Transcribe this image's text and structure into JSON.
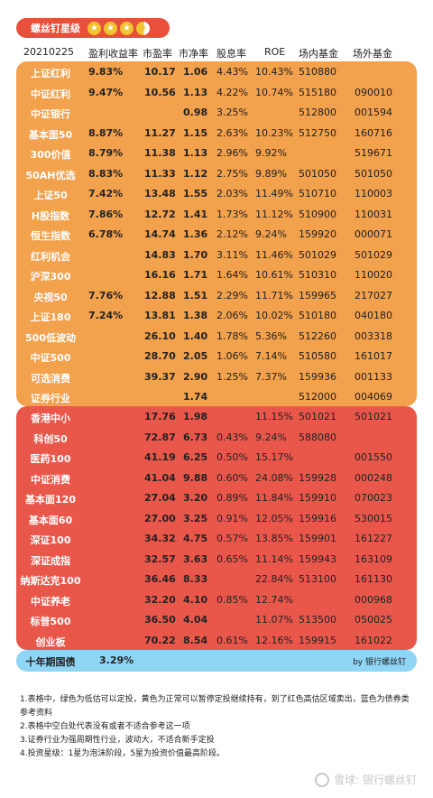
{
  "badge": {
    "label": "螺丝钉星级",
    "stars": "3.5"
  },
  "header": {
    "date": "20210225",
    "pe_yield": "盈利收益率",
    "pe": "市盈率",
    "pb": "市净率",
    "dividend": "股息率",
    "roe": "ROE",
    "onfund": "场内基金",
    "offfund": "场外基金"
  },
  "orange_rows": [
    {
      "name": "上证红利",
      "yield": "9.83%",
      "pe": "10.17",
      "pb": "1.06",
      "div": "4.43%",
      "roe": "10.43%",
      "on": "510880",
      "off": ""
    },
    {
      "name": "中证红利",
      "yield": "9.47%",
      "pe": "10.56",
      "pb": "1.13",
      "div": "4.22%",
      "roe": "10.74%",
      "on": "515180",
      "off": "090010"
    },
    {
      "name": "中证银行",
      "yield": "",
      "pe": "",
      "pb": "0.98",
      "div": "3.25%",
      "roe": "",
      "on": "512800",
      "off": "001594"
    },
    {
      "name": "基本面50",
      "yield": "8.87%",
      "pe": "11.27",
      "pb": "1.15",
      "div": "2.63%",
      "roe": "10.23%",
      "on": "512750",
      "off": "160716"
    },
    {
      "name": "300价值",
      "yield": "8.79%",
      "pe": "11.38",
      "pb": "1.13",
      "div": "2.96%",
      "roe": "9.92%",
      "on": "",
      "off": "519671"
    },
    {
      "name": "50AH优选",
      "yield": "8.83%",
      "pe": "11.33",
      "pb": "1.12",
      "div": "2.75%",
      "roe": "9.89%",
      "on": "501050",
      "off": "501050"
    },
    {
      "name": "上证50",
      "yield": "7.42%",
      "pe": "13.48",
      "pb": "1.55",
      "div": "2.03%",
      "roe": "11.49%",
      "on": "510710",
      "off": "110003"
    },
    {
      "name": "H股指数",
      "yield": "7.86%",
      "pe": "12.72",
      "pb": "1.41",
      "div": "1.73%",
      "roe": "11.12%",
      "on": "510900",
      "off": "110031"
    },
    {
      "name": "恒生指数",
      "yield": "6.78%",
      "pe": "14.74",
      "pb": "1.36",
      "div": "2.12%",
      "roe": "9.24%",
      "on": "159920",
      "off": "000071"
    },
    {
      "name": "红利机会",
      "yield": "",
      "pe": "14.83",
      "pb": "1.70",
      "div": "3.11%",
      "roe": "11.46%",
      "on": "501029",
      "off": "501029"
    },
    {
      "name": "沪深300",
      "yield": "",
      "pe": "16.16",
      "pb": "1.71",
      "div": "1.64%",
      "roe": "10.61%",
      "on": "510310",
      "off": "110020"
    },
    {
      "name": "央视50",
      "yield": "7.76%",
      "pe": "12.88",
      "pb": "1.51",
      "div": "2.29%",
      "roe": "11.71%",
      "on": "159965",
      "off": "217027"
    },
    {
      "name": "上证180",
      "yield": "7.24%",
      "pe": "13.81",
      "pb": "1.38",
      "div": "2.06%",
      "roe": "10.02%",
      "on": "510180",
      "off": "040180"
    },
    {
      "name": "500低波动",
      "yield": "",
      "pe": "26.10",
      "pb": "1.40",
      "div": "1.78%",
      "roe": "5.36%",
      "on": "512260",
      "off": "003318"
    },
    {
      "name": "中证500",
      "yield": "",
      "pe": "28.70",
      "pb": "2.05",
      "div": "1.06%",
      "roe": "7.14%",
      "on": "510580",
      "off": "161017"
    },
    {
      "name": "可选消费",
      "yield": "",
      "pe": "39.37",
      "pb": "2.90",
      "div": "1.25%",
      "roe": "7.37%",
      "on": "159936",
      "off": "001133"
    },
    {
      "name": "证券行业",
      "yield": "",
      "pe": "",
      "pb": "1.74",
      "div": "",
      "roe": "",
      "on": "512000",
      "off": "004069"
    }
  ],
  "red_rows": [
    {
      "name": "香港中小",
      "yield": "",
      "pe": "17.76",
      "pb": "1.98",
      "div": "",
      "roe": "11.15%",
      "on": "501021",
      "off": "501021"
    },
    {
      "name": "科创50",
      "yield": "",
      "pe": "72.87",
      "pb": "6.73",
      "div": "0.43%",
      "roe": "9.24%",
      "on": "588080",
      "off": ""
    },
    {
      "name": "医药100",
      "yield": "",
      "pe": "41.19",
      "pb": "6.25",
      "div": "0.50%",
      "roe": "15.17%",
      "on": "",
      "off": "001550"
    },
    {
      "name": "中证消费",
      "yield": "",
      "pe": "41.04",
      "pb": "9.88",
      "div": "0.60%",
      "roe": "24.08%",
      "on": "159928",
      "off": "000248"
    },
    {
      "name": "基本面120",
      "yield": "",
      "pe": "27.04",
      "pb": "3.20",
      "div": "0.89%",
      "roe": "11.84%",
      "on": "159910",
      "off": "070023"
    },
    {
      "name": "基本面60",
      "yield": "",
      "pe": "27.00",
      "pb": "3.25",
      "div": "0.91%",
      "roe": "12.05%",
      "on": "159916",
      "off": "530015"
    },
    {
      "name": "深证100",
      "yield": "",
      "pe": "34.32",
      "pb": "4.75",
      "div": "0.57%",
      "roe": "13.85%",
      "on": "159901",
      "off": "161227"
    },
    {
      "name": "深证成指",
      "yield": "",
      "pe": "32.57",
      "pb": "3.63",
      "div": "0.65%",
      "roe": "11.14%",
      "on": "159943",
      "off": "163109"
    },
    {
      "name": "纳斯达克100",
      "yield": "",
      "pe": "36.46",
      "pb": "8.33",
      "div": "",
      "roe": "22.84%",
      "on": "513100",
      "off": "161130"
    },
    {
      "name": "中证养老",
      "yield": "",
      "pe": "32.20",
      "pb": "4.10",
      "div": "0.85%",
      "roe": "12.74%",
      "on": "",
      "off": "000968"
    },
    {
      "name": "标普500",
      "yield": "",
      "pe": "36.50",
      "pb": "4.04",
      "div": "",
      "roe": "11.07%",
      "on": "513500",
      "off": "050025"
    },
    {
      "name": "创业板",
      "yield": "",
      "pe": "70.22",
      "pb": "8.54",
      "div": "0.61%",
      "roe": "12.16%",
      "on": "159915",
      "off": "161022"
    }
  ],
  "bond": {
    "label": "十年期国债",
    "value": "3.29%",
    "by": "by 银行螺丝钉"
  },
  "notes": [
    "1.表格中，绿色为低估可以定投，黄色为正常可以暂停定投继续持有，到了红色高估区域卖出，蓝色为债券类参考资料",
    "2.表格中空白处代表没有或者不适合参考这一项",
    "3.证券行业为强周期性行业，波动大，不适合新手定投",
    "4.投资星级：1星为泡沫阶段，5星为投资价值最高阶段。"
  ],
  "watermark": "雪球: 银行螺丝钉",
  "colors": {
    "orange": "#f2a14d",
    "red": "#e9574b",
    "blue": "#8fd5f4",
    "badge": "#e8503c",
    "star": "#f2c230"
  }
}
